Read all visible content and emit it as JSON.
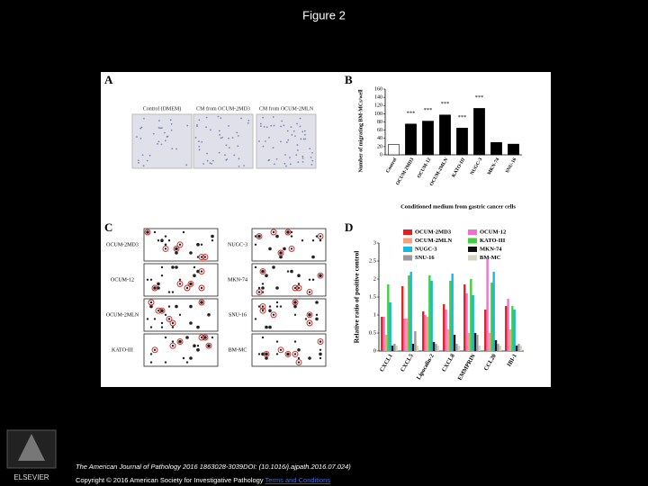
{
  "title": "Figure 2",
  "figure": {
    "panel_a": {
      "label": "A",
      "images": [
        "Control (DMEM)",
        "CM from OCUM-2MD3",
        "CM from OCUM-2MLN"
      ]
    },
    "panel_b": {
      "label": "B",
      "type": "bar",
      "y_label": "Number of migrating BM-MCs/well",
      "x_label": "Conditioned medium from gastric cancer cells",
      "categories": [
        "Control",
        "OCUM-2MD3",
        "OCUM-12",
        "OCUM-2MLN",
        "KATO-III",
        "NUGC-3",
        "MKN-74",
        "SNU-16"
      ],
      "values": [
        25,
        75,
        82,
        97,
        65,
        113,
        30,
        26
      ],
      "colors": [
        "#ffffff",
        "#000000",
        "#000000",
        "#000000",
        "#000000",
        "#000000",
        "#000000",
        "#000000"
      ],
      "significance": [
        null,
        "***",
        "***",
        "***",
        "***",
        "***",
        null,
        null
      ],
      "ylim": [
        0,
        160
      ],
      "yticks": [
        0,
        20,
        40,
        60,
        80,
        100,
        120,
        140,
        160
      ]
    },
    "panel_c": {
      "label": "C",
      "left_blots": [
        "OCUM-2MD3",
        "OCUM-12",
        "OCUM-2MLN",
        "KATO-III"
      ],
      "right_blots": [
        "NUGC-3",
        "MKN-74",
        "SNU-16",
        "BM-MC"
      ]
    },
    "panel_d": {
      "label": "D",
      "type": "bar",
      "y_label": "Relative ratio of positive control",
      "categories": [
        "CXCL1",
        "CXCL5",
        "Lipocalin-2",
        "CXCL8",
        "EMMPRIN",
        "CCL20",
        "IBI-1"
      ],
      "series": [
        {
          "name": "OCUM-2MD3",
          "color": "#e0201f",
          "values": [
            0.95,
            1.8,
            1.1,
            1.3,
            1.85,
            1.15,
            1.25
          ]
        },
        {
          "name": "OCUM-12",
          "color": "#f06fd0",
          "values": [
            0.95,
            0.9,
            1.0,
            1.15,
            1.6,
            2.55,
            1.45
          ]
        },
        {
          "name": "OCUM-2MLN",
          "color": "#f4a07a",
          "values": [
            0.45,
            0.9,
            0.95,
            0.6,
            0.5,
            0.5,
            0.6
          ]
        },
        {
          "name": "KATO-III",
          "color": "#3ed13e",
          "values": [
            1.85,
            2.1,
            2.1,
            1.95,
            2.0,
            1.9,
            1.25
          ]
        },
        {
          "name": "NUGC-3",
          "color": "#18b6e6",
          "values": [
            1.35,
            2.2,
            1.95,
            2.15,
            1.55,
            2.2,
            1.15
          ]
        },
        {
          "name": "MKN-74",
          "color": "#111111",
          "values": [
            0.15,
            0.2,
            0.25,
            0.45,
            0.5,
            0.3,
            0.15
          ]
        },
        {
          "name": "SNU-16",
          "color": "#9a9a9a",
          "values": [
            0.2,
            0.55,
            0.2,
            0.2,
            0.45,
            0.2,
            0.2
          ]
        },
        {
          "name": "BM-MC",
          "color": "#d8d2c0",
          "values": [
            0.15,
            0.15,
            0.15,
            0.15,
            0.15,
            0.15,
            0.15
          ]
        }
      ],
      "ylim": [
        0,
        3
      ],
      "yticks": [
        0,
        0.5,
        1,
        1.5,
        2,
        2.5,
        3
      ]
    }
  },
  "footer": {
    "citation": "The American Journal of Pathology 2016 1863028-3039DOI: (10.1016/j.ajpath.2016.07.024)",
    "copyright": "Copyright © 2016 American Society for Investigative Pathology",
    "link": "Terms and Conditions",
    "logo": "ELSEVIER"
  }
}
